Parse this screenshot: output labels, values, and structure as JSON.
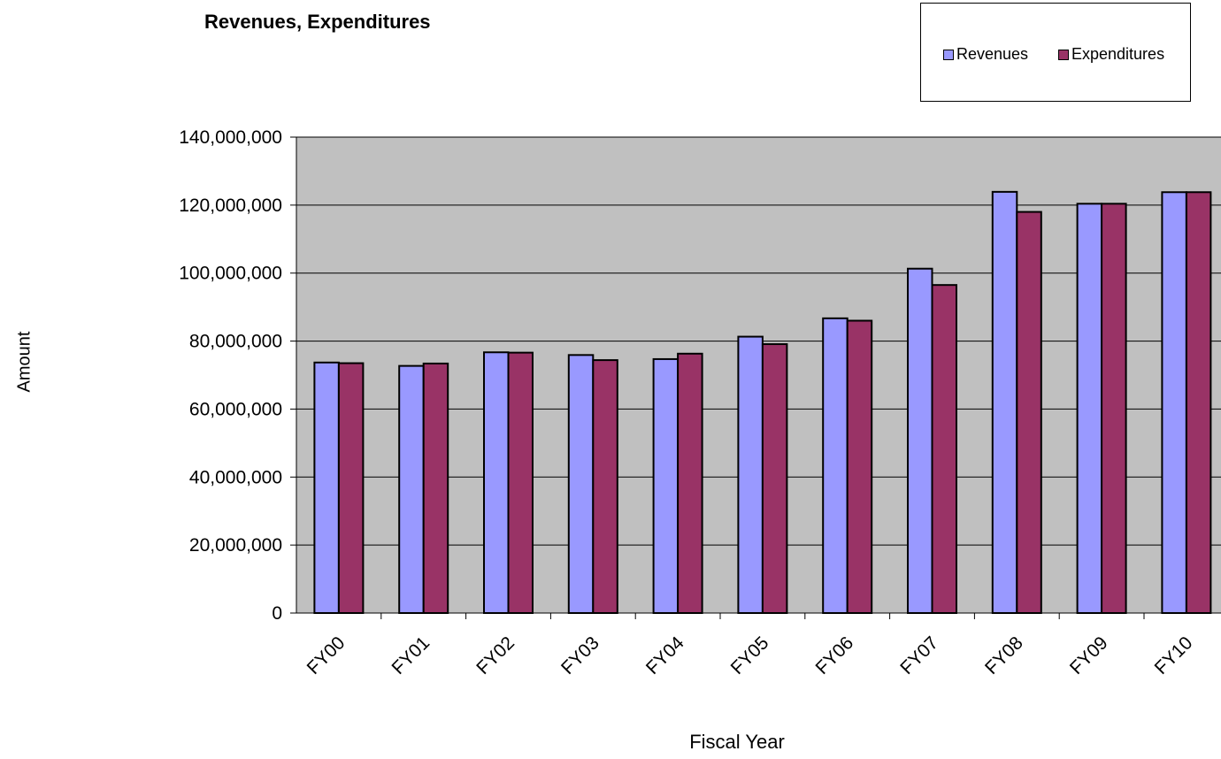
{
  "chart_data": {
    "type": "bar",
    "title": "Revenues, Expenditures",
    "xlabel": "Fiscal Year",
    "ylabel": "Amount",
    "categories": [
      "FY00",
      "FY01",
      "FY02",
      "FY03",
      "FY04",
      "FY05",
      "FY06",
      "FY07",
      "FY08",
      "FY09",
      "FY10"
    ],
    "series": [
      {
        "name": "Revenues",
        "color": "#9999FF",
        "values": [
          73700000,
          72700000,
          76700000,
          75900000,
          74700000,
          81300000,
          86700000,
          101300000,
          123900000,
          120400000,
          123800000
        ]
      },
      {
        "name": "Expenditures",
        "color": "#993366",
        "values": [
          73500000,
          73400000,
          76600000,
          74400000,
          76300000,
          79100000,
          86000000,
          96500000,
          118000000,
          120400000,
          123800000
        ]
      }
    ],
    "ylim": [
      0,
      140000000
    ],
    "yticks": [
      "0",
      "20,000,000",
      "40,000,000",
      "60,000,000",
      "80,000,000",
      "100,000,000",
      "120,000,000",
      "140,000,000"
    ],
    "grid": true,
    "plot_background": "#C0C0C0",
    "legend_position": "top-right"
  }
}
